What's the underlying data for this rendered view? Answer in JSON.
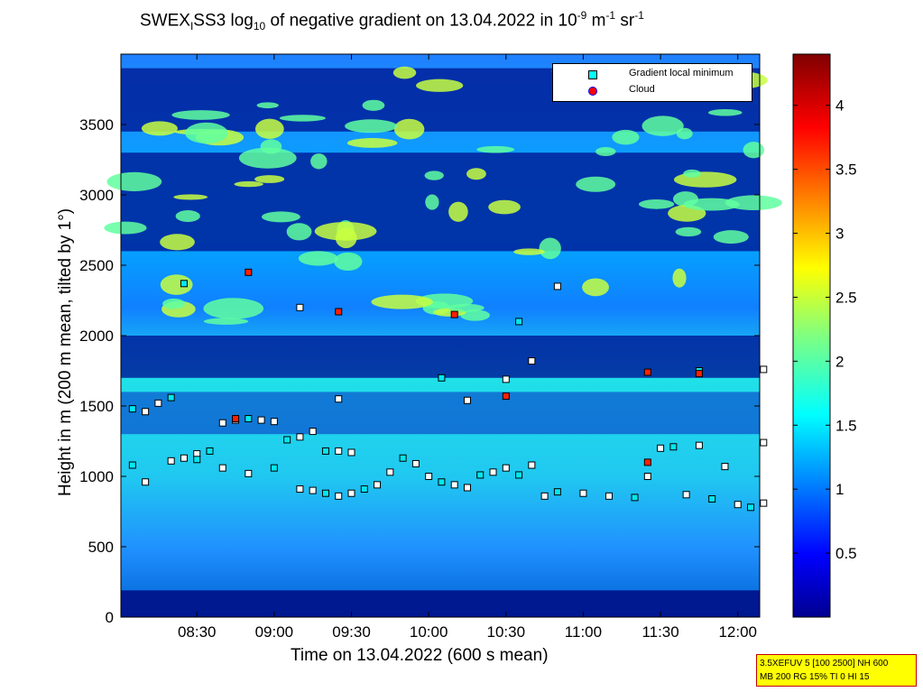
{
  "chart_data": {
    "type": "heatmap",
    "title": {
      "part1": "SWEX",
      "sub1": "I",
      "part2": "SS3 log",
      "sub2": "10",
      "part3": " of negative gradient on 13.04.2022 in 10",
      "sup1": "-9",
      "part4": " m",
      "sup2": "-1",
      "part5": " sr",
      "sup3": "-1"
    },
    "xlabel": "Time on 13.04.2022 (600 s mean)",
    "ylabel": "Height in m (200 m mean, tilted by 1°)",
    "x_ticks": [
      "08:30",
      "09:00",
      "09:30",
      "10:00",
      "10:30",
      "11:00",
      "11:30",
      "12:00"
    ],
    "y_ticks": [
      0,
      500,
      1000,
      1500,
      2000,
      2500,
      3000,
      3500
    ],
    "ylim": [
      0,
      4000
    ],
    "colorbar": {
      "ticks": [
        0.5,
        1,
        1.5,
        2,
        2.5,
        3,
        3.5,
        4
      ],
      "clim": [
        0,
        4.4
      ],
      "colormap": "jet"
    },
    "legend": {
      "position": "top-right",
      "items": [
        {
          "label": "Gradient local minimum",
          "color": "#00ffff"
        },
        {
          "label": "Cloud",
          "color": "#ff0000"
        }
      ]
    },
    "series": [
      {
        "name": "Gradient local minimum",
        "points": [
          [
            "08:05",
            1480
          ],
          [
            "08:10",
            1460
          ],
          [
            "08:15",
            1520
          ],
          [
            "08:20",
            1560
          ],
          [
            "08:25",
            1130
          ],
          [
            "08:30",
            1160
          ],
          [
            "08:35",
            1180
          ],
          [
            "08:40",
            1380
          ],
          [
            "08:45",
            1400
          ],
          [
            "08:50",
            1410
          ],
          [
            "08:55",
            1400
          ],
          [
            "09:00",
            1390
          ],
          [
            "09:05",
            1260
          ],
          [
            "09:10",
            1280
          ],
          [
            "09:15",
            1320
          ],
          [
            "09:20",
            1180
          ],
          [
            "09:25",
            1180
          ],
          [
            "09:30",
            1170
          ],
          [
            "08:05",
            1080
          ],
          [
            "08:10",
            960
          ],
          [
            "08:20",
            1110
          ],
          [
            "08:30",
            1120
          ],
          [
            "08:40",
            1060
          ],
          [
            "08:50",
            1020
          ],
          [
            "09:00",
            1060
          ],
          [
            "09:10",
            910
          ],
          [
            "09:15",
            900
          ],
          [
            "09:20",
            880
          ],
          [
            "09:25",
            860
          ],
          [
            "09:30",
            880
          ],
          [
            "09:35",
            910
          ],
          [
            "09:40",
            940
          ],
          [
            "09:45",
            1030
          ],
          [
            "09:50",
            1130
          ],
          [
            "09:55",
            1090
          ],
          [
            "10:00",
            1000
          ],
          [
            "10:05",
            960
          ],
          [
            "10:10",
            940
          ],
          [
            "10:15",
            920
          ],
          [
            "10:20",
            1010
          ],
          [
            "10:25",
            1030
          ],
          [
            "10:30",
            1060
          ],
          [
            "10:35",
            1010
          ],
          [
            "10:40",
            1080
          ],
          [
            "10:45",
            860
          ],
          [
            "10:50",
            890
          ],
          [
            "11:00",
            880
          ],
          [
            "11:10",
            860
          ],
          [
            "11:20",
            850
          ],
          [
            "11:25",
            1000
          ],
          [
            "11:30",
            1200
          ],
          [
            "11:35",
            1210
          ],
          [
            "11:40",
            870
          ],
          [
            "11:45",
            1220
          ],
          [
            "11:50",
            840
          ],
          [
            "11:55",
            1070
          ],
          [
            "12:00",
            800
          ],
          [
            "12:05",
            780
          ],
          [
            "12:10",
            810
          ],
          [
            "12:10",
            1240
          ],
          [
            "08:25",
            2370
          ],
          [
            "09:10",
            2200
          ],
          [
            "09:25",
            1550
          ],
          [
            "10:05",
            1700
          ],
          [
            "10:15",
            1540
          ],
          [
            "10:30",
            1690
          ],
          [
            "10:35",
            2100
          ],
          [
            "10:40",
            1820
          ],
          [
            "10:50",
            2350
          ],
          [
            "11:45",
            1750
          ],
          [
            "12:10",
            1760
          ]
        ]
      },
      {
        "name": "Cloud",
        "points": [
          [
            "08:45",
            1410
          ],
          [
            "08:50",
            2450
          ],
          [
            "09:25",
            2170
          ],
          [
            "10:10",
            2150
          ],
          [
            "10:30",
            1570
          ],
          [
            "11:25",
            1740
          ],
          [
            "11:25",
            1100
          ],
          [
            "11:45",
            1730
          ]
        ]
      }
    ]
  },
  "info_box": {
    "line1": "3.5XEFUV 5 [100 2500] NH 600",
    "line2": "MB 200 RG 15% TI 0 HI 15"
  }
}
